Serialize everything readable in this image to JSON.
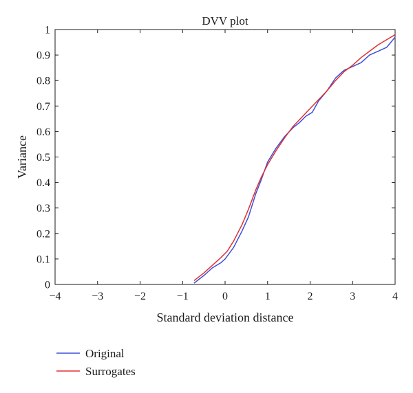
{
  "chart_data": {
    "type": "line",
    "title": "DVV plot",
    "xlabel": "Standard deviation distance",
    "ylabel": "Variance",
    "xlim": [
      -4,
      4
    ],
    "ylim": [
      0,
      1
    ],
    "xticks": [
      -4,
      -3,
      -2,
      -1,
      0,
      1,
      2,
      3,
      4
    ],
    "yticks": [
      0,
      0.1,
      0.2,
      0.3,
      0.4,
      0.5,
      0.6,
      0.7,
      0.8,
      0.9,
      1
    ],
    "xtick_labels": [
      "−4",
      "−3",
      "−2",
      "−1",
      "0",
      "1",
      "2",
      "3",
      "4"
    ],
    "ytick_labels": [
      "0",
      "0.1",
      "0.2",
      "0.3",
      "0.4",
      "0.5",
      "0.6",
      "0.7",
      "0.8",
      "0.9",
      "1"
    ],
    "grid": false,
    "legend_position": "below",
    "series": [
      {
        "name": "Original",
        "color": "#3b4fd8",
        "x": [
          -0.73,
          -0.5,
          -0.3,
          -0.1,
          0.0,
          0.2,
          0.4,
          0.55,
          0.72,
          0.85,
          1.0,
          1.2,
          1.4,
          1.6,
          1.75,
          1.9,
          2.05,
          2.2,
          2.4,
          2.6,
          2.8,
          3.0,
          3.2,
          3.4,
          3.6,
          3.8,
          4.0
        ],
        "values": [
          0.005,
          0.035,
          0.065,
          0.085,
          0.1,
          0.145,
          0.21,
          0.265,
          0.355,
          0.41,
          0.48,
          0.535,
          0.58,
          0.615,
          0.635,
          0.66,
          0.675,
          0.72,
          0.76,
          0.81,
          0.84,
          0.855,
          0.87,
          0.9,
          0.915,
          0.93,
          0.97
        ]
      },
      {
        "name": "Surrogates",
        "color": "#e03030",
        "x": [
          -0.73,
          -0.5,
          -0.3,
          -0.1,
          0.05,
          0.2,
          0.4,
          0.55,
          0.72,
          0.85,
          1.0,
          1.2,
          1.4,
          1.6,
          1.8,
          2.0,
          2.2,
          2.4,
          2.6,
          2.8,
          3.0,
          3.2,
          3.4,
          3.6,
          3.8,
          4.0
        ],
        "values": [
          0.015,
          0.045,
          0.075,
          0.105,
          0.13,
          0.17,
          0.235,
          0.295,
          0.37,
          0.42,
          0.47,
          0.525,
          0.575,
          0.62,
          0.655,
          0.69,
          0.725,
          0.76,
          0.8,
          0.835,
          0.86,
          0.89,
          0.915,
          0.94,
          0.96,
          0.98
        ]
      }
    ]
  }
}
